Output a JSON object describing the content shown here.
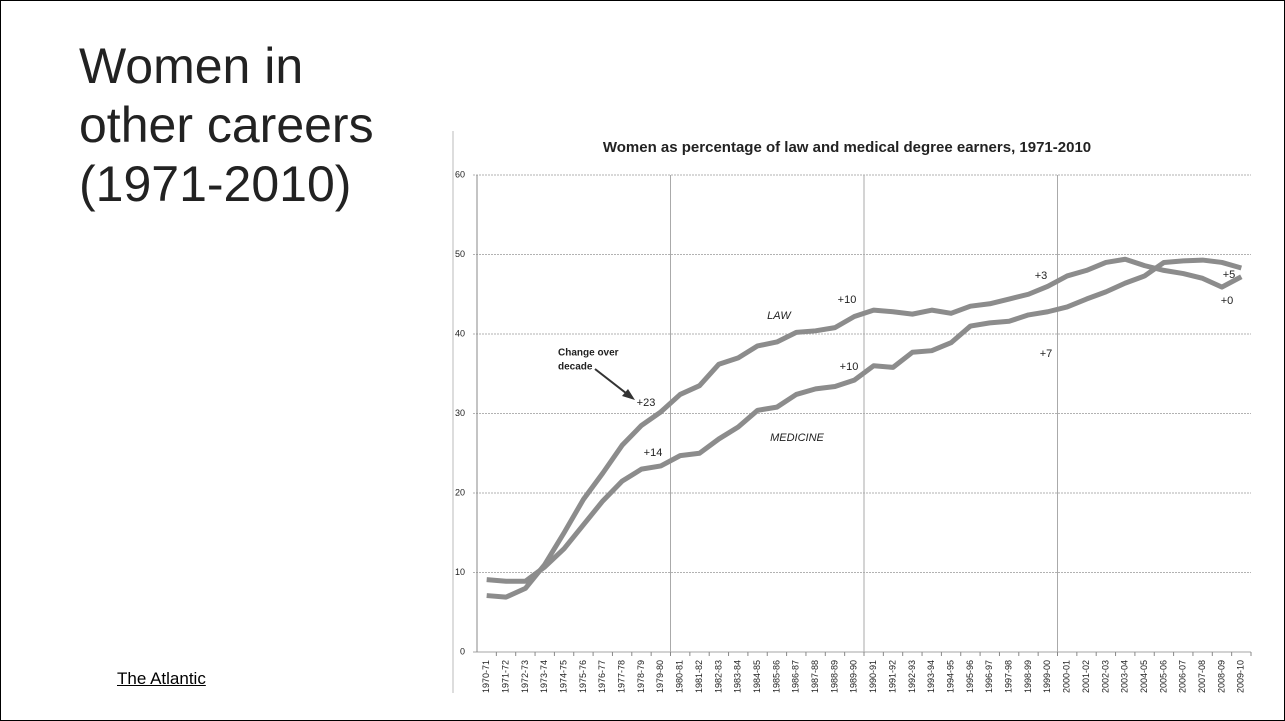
{
  "slide": {
    "title_lines": [
      "Women in",
      "other careers",
      "(1971-2010)"
    ],
    "source": "The Atlantic"
  },
  "chart_data": {
    "type": "line",
    "title": "Women as percentage of law and medical degree earners, 1971-2010",
    "categories": [
      "1970-71",
      "1971-72",
      "1972-73",
      "1973-74",
      "1974-75",
      "1975-76",
      "1976-77",
      "1977-78",
      "1978-79",
      "1979-80",
      "1980-81",
      "1981-82",
      "1982-83",
      "1983-84",
      "1984-85",
      "1985-86",
      "1986-87",
      "1987-88",
      "1988-89",
      "1989-90",
      "1990-91",
      "1991-92",
      "1992-93",
      "1993-94",
      "1994-95",
      "1995-96",
      "1996-97",
      "1997-98",
      "1998-99",
      "1999-00",
      "2000-01",
      "2001-02",
      "2002-03",
      "2003-04",
      "2004-05",
      "2005-06",
      "2006-07",
      "2007-08",
      "2008-09",
      "2009-10"
    ],
    "series": [
      {
        "name": "LAW",
        "color": "#8c8c8c",
        "values": [
          7.1,
          6.9,
          8.0,
          11,
          15,
          19.2,
          22.5,
          26,
          28.5,
          30.2,
          32.4,
          33.5,
          36.2,
          37,
          38.5,
          39,
          40.2,
          40.4,
          40.8,
          42.2,
          43,
          42.8,
          42.5,
          43,
          42.6,
          43.5,
          43.8,
          44.4,
          45,
          46,
          47.3,
          48,
          49,
          49.4,
          48.6,
          48,
          47.6,
          47,
          45.9,
          47.2
        ]
      },
      {
        "name": "MEDICINE",
        "color": "#8c8c8c",
        "values": [
          9.1,
          8.9,
          8.9,
          10.7,
          13,
          16,
          19,
          21.5,
          23,
          23.4,
          24.7,
          25,
          26.8,
          28.3,
          30.4,
          30.8,
          32.4,
          33.1,
          33.4,
          34.2,
          36,
          35.8,
          37.7,
          37.9,
          38.9,
          41,
          41.4,
          41.6,
          42.4,
          42.8,
          43.4,
          44.4,
          45.3,
          46.4,
          47.3,
          49,
          49.2,
          49.3,
          49,
          48.3
        ]
      }
    ],
    "annotations": [
      "Change over",
      "decade",
      "+23",
      "+14",
      "+10",
      "+10",
      "+3",
      "+7",
      "+5",
      "+0"
    ],
    "ylim": [
      0,
      60
    ],
    "yticks": [
      0,
      10,
      20,
      30,
      40,
      50,
      60
    ],
    "grid": true
  }
}
